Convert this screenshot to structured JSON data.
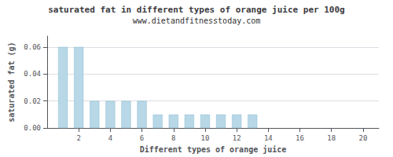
{
  "chart_data": {
    "type": "bar",
    "title": "saturated fat in different types of orange juice per 100g",
    "subtitle": "www.dietandfitnesstoday.com",
    "xlabel": "Different types of orange juice",
    "ylabel": "saturated fat (g)",
    "x": [
      1,
      2,
      3,
      4,
      5,
      6,
      7,
      8,
      9,
      10,
      11,
      12,
      13
    ],
    "values": [
      0.06,
      0.06,
      0.02,
      0.02,
      0.02,
      0.02,
      0.01,
      0.01,
      0.01,
      0.01,
      0.01,
      0.01,
      0.01
    ],
    "color": "#b8d8e8",
    "xlim": [
      0,
      21
    ],
    "xticks": [
      2,
      4,
      6,
      8,
      10,
      12,
      14,
      16,
      18,
      20
    ],
    "ylim": [
      0,
      0.068
    ],
    "yticks": [
      {
        "value": 0,
        "label": "0.00"
      },
      {
        "value": 0.02,
        "label": "0.02"
      },
      {
        "value": 0.04,
        "label": "0.04"
      },
      {
        "value": 0.06,
        "label": "0.06"
      }
    ],
    "grid": true
  }
}
